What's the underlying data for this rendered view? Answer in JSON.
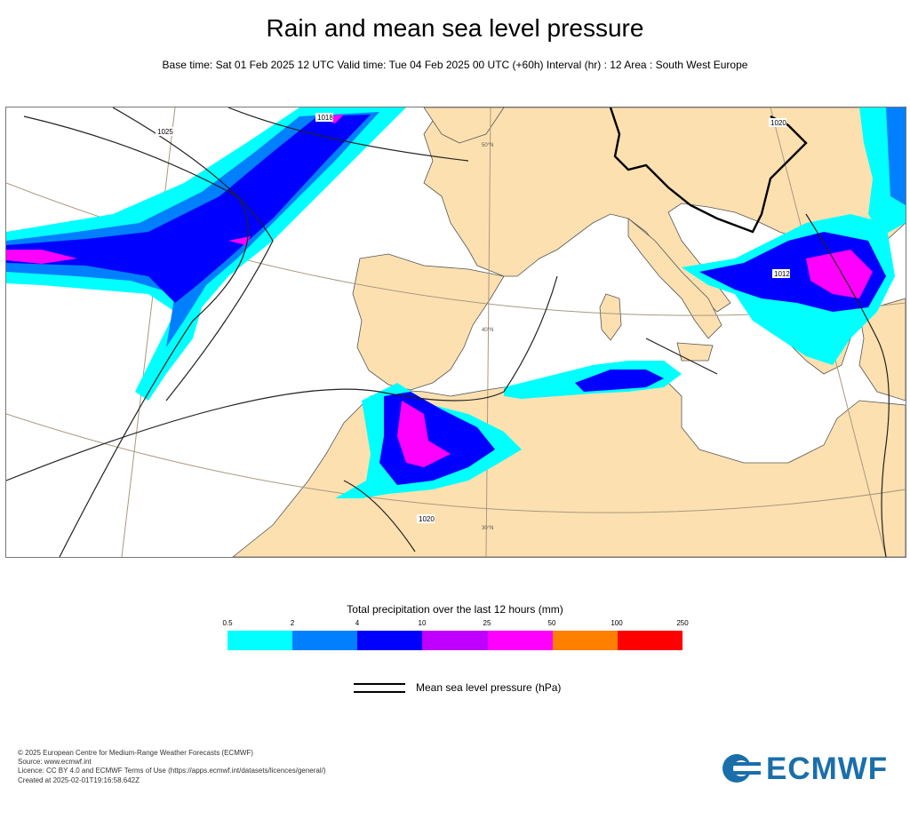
{
  "header": {
    "title": "Rain and mean sea level pressure",
    "subtitle": "Base time: Sat 01 Feb 2025 12 UTC Valid time: Tue 04 Feb 2025 00 UTC (+60h) Interval (hr) : 12 Area : South West Europe"
  },
  "map": {
    "isobar_labels": [
      "1018",
      "1025",
      "1020",
      "1012",
      "1020"
    ],
    "graticule_labels": [
      "50°N",
      "40°N",
      "30°N"
    ]
  },
  "legend": {
    "title": "Total precipitation over the last 12 hours (mm)",
    "ticks": [
      "0.5",
      "2",
      "4",
      "10",
      "25",
      "50",
      "100",
      "250"
    ],
    "colors": [
      "#00ffff",
      "#0080ff",
      "#0000ff",
      "#bf00ff",
      "#ff00ff",
      "#ff8000",
      "#ff0000"
    ],
    "pressure_label": "Mean sea level pressure (hPa)"
  },
  "colors": {
    "land": "#fde0b0",
    "sea": "#ffffff",
    "brand": "#1a6faa"
  },
  "footer": {
    "line1": "© 2025 European Centre for Medium-Range Weather Forecasts (ECMWF)",
    "line2": "Source: www.ecmwf.int",
    "line3": "Licence: CC BY 4.0 and ECMWF Terms of Use (https://apps.ecmwf.int/datasets/licences/general/)",
    "line4": "Created at 2025-02-01T19:16:58.642Z"
  },
  "logo": {
    "text": "ECMWF"
  }
}
